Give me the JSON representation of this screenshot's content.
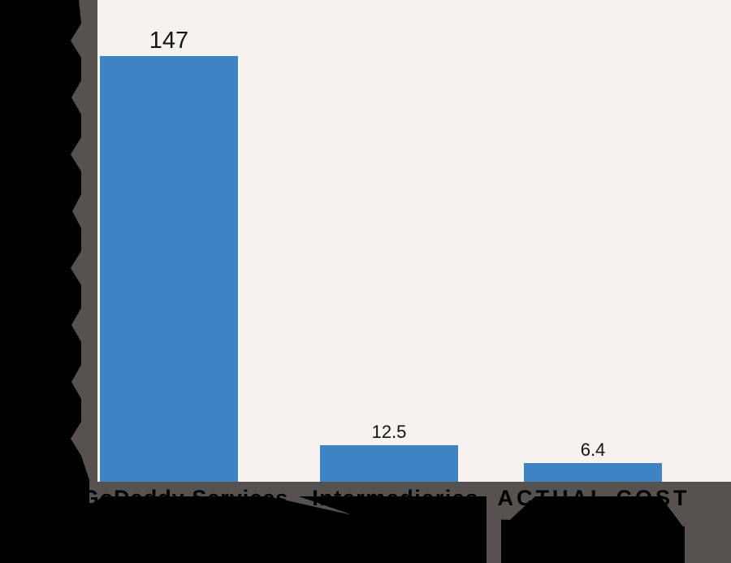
{
  "chart_data": {
    "type": "bar",
    "title": "",
    "xlabel": "",
    "ylabel": "",
    "categories": [
      "GoDaddy Services",
      "Intermediaries",
      "ACTUAL COST"
    ],
    "values": [
      147,
      12.5,
      6.4
    ],
    "value_labels": [
      "147",
      "12.5",
      "6.4"
    ],
    "ylim": [
      0,
      166
    ],
    "grid": false,
    "legend": false,
    "axis_tick_labels_visible": false,
    "note_visible_effect": "black labels on black background; only silhouettes visible over gray drop shadow"
  },
  "colors": {
    "background": "#000000",
    "panel": "#f6f2ee",
    "bar": "#3e84c4",
    "shadow_gray": "#555250",
    "label_text": "#141414"
  }
}
